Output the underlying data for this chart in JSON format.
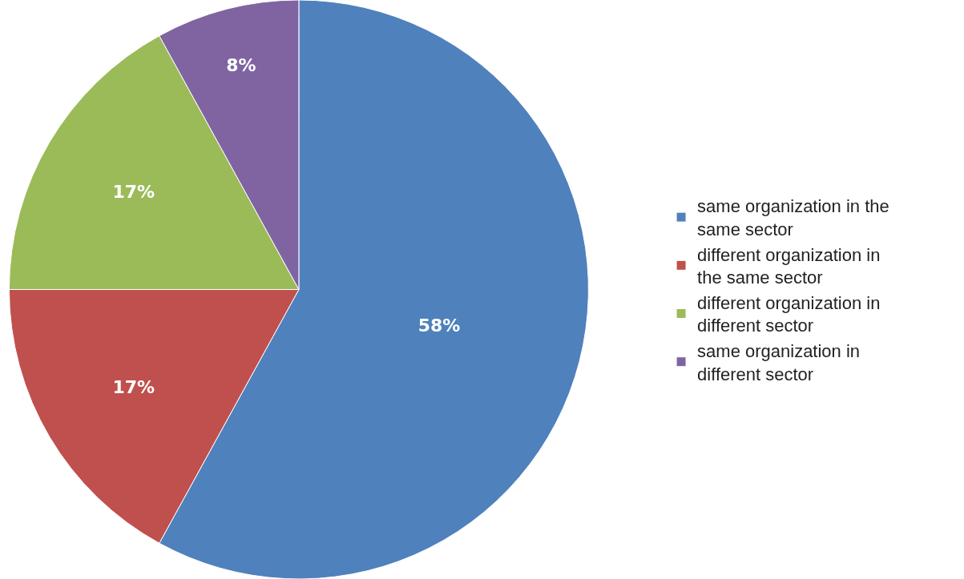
{
  "chart_data": {
    "type": "pie",
    "categories": [
      "same organization in the same sector",
      "different organization in the same sector",
      "different organization in different sector",
      "same organization in different sector"
    ],
    "values": [
      58,
      17,
      17,
      8
    ],
    "colors": [
      "#4f81bd",
      "#c0504d",
      "#9bbb59",
      "#8064a2"
    ],
    "value_labels": [
      "58%",
      "17%",
      "17%",
      "8%"
    ],
    "legend": "right"
  }
}
